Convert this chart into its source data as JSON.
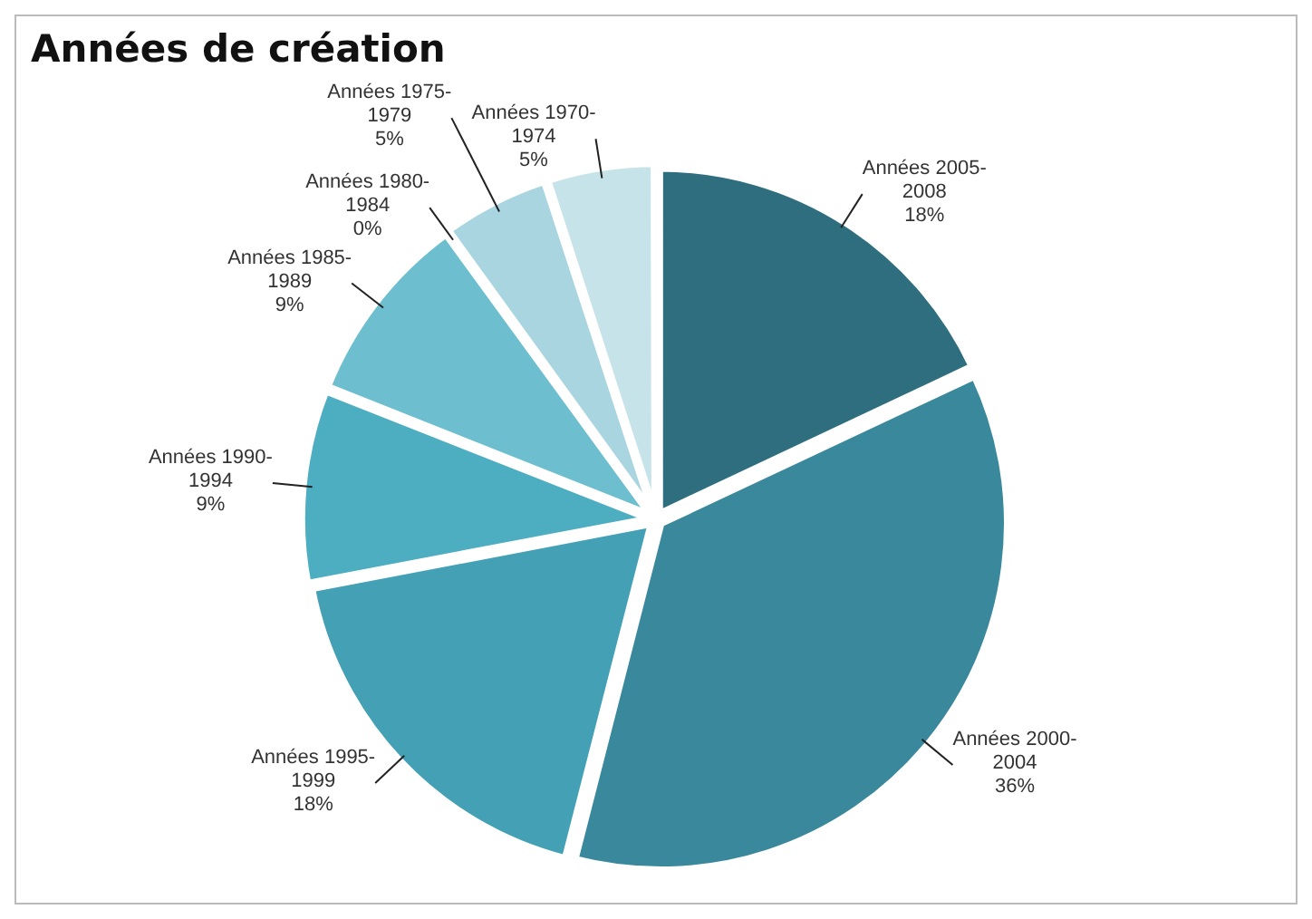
{
  "chart_data": {
    "type": "pie",
    "title": "Années de création",
    "categories": [
      "Années 2005-2008",
      "Années 2000-2004",
      "Années 1995-1999",
      "Années 1990-1994",
      "Années 1985-1989",
      "Années 1980-1984",
      "Années 1975-1979",
      "Années 1970-1974"
    ],
    "values": [
      18,
      36,
      18,
      9,
      9,
      0,
      5,
      5
    ],
    "value_labels": [
      "18%",
      "36%",
      "18%",
      "9%",
      "9%",
      "0%",
      "5%",
      "5%"
    ],
    "colors": [
      "#2f6e7e",
      "#3a889c",
      "#44a0b4",
      "#4eaec1",
      "#6dbfd0",
      "#8dcbd8",
      "#a9d5e0",
      "#c6e3ea"
    ],
    "legend": false
  }
}
